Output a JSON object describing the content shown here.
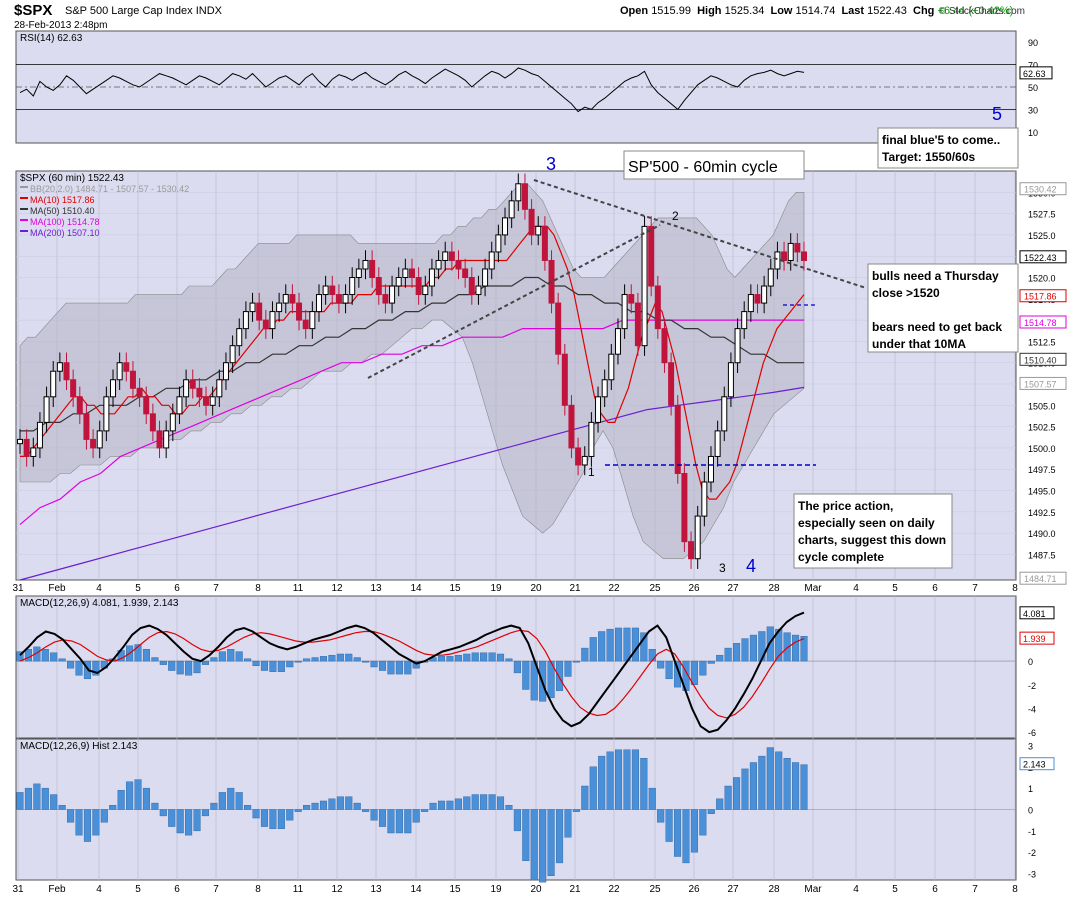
{
  "header": {
    "symbol": "$SPX",
    "name": "S&P 500 Large Cap Index",
    "exchange": "INDX",
    "datetime": "28-Feb-2013 2:48pm",
    "open_label": "Open",
    "open": "1515.99",
    "high_label": "High",
    "high": "1525.34",
    "low_label": "Low",
    "low": "1514.74",
    "last_label": "Last",
    "last": "1522.43",
    "chg_label": "Chg",
    "chg": "+6.44 (+0.42%)",
    "credit": "© StockCharts.com"
  },
  "colors": {
    "up": "#000000",
    "down": "#c0143c",
    "bb": "#999999",
    "ma10": "#e00000",
    "ma50": "#333333",
    "ma100": "#e000e0",
    "ma200": "#6a1fd0",
    "macd": "#000000",
    "signal": "#e00000",
    "hist": "#4a90d9",
    "panel": "#dcdcf0",
    "annotation": "#0000cc"
  },
  "chart_data": [
    {
      "type": "line",
      "title": "RSI(14) 62.63",
      "ylim": [
        0,
        100
      ],
      "yticks": [
        10,
        30,
        50,
        70,
        90
      ],
      "price_box": "62.63",
      "y": [
        45,
        48,
        42,
        55,
        50,
        47,
        52,
        60,
        56,
        50,
        44,
        48,
        52,
        56,
        60,
        58,
        55,
        52,
        50,
        54,
        58,
        62,
        60,
        58,
        55,
        52,
        56,
        60,
        58,
        55,
        52,
        57,
        62,
        60,
        57,
        62,
        56,
        50,
        54,
        58,
        60,
        56,
        52,
        58,
        62,
        55,
        50,
        57,
        61,
        59,
        56,
        60,
        63,
        58,
        55,
        52,
        56,
        61,
        64,
        60,
        57,
        53,
        58,
        62,
        66,
        63,
        60,
        56,
        50,
        55,
        60,
        64,
        62,
        58,
        62,
        67,
        65,
        62,
        60,
        55,
        50,
        45,
        40,
        35,
        28,
        32,
        30,
        36,
        40,
        45,
        50,
        55,
        58,
        60,
        64,
        52,
        45,
        40,
        35,
        30,
        38,
        45,
        52,
        56,
        60,
        58,
        55,
        52,
        50,
        56,
        60,
        62,
        63,
        65,
        62,
        60,
        62,
        64,
        63
      ]
    },
    {
      "type": "line",
      "title": "$SPX (60 min) 1522.43",
      "ylim": [
        1484.5,
        1532.5
      ],
      "yticks": [
        1487.5,
        1490.0,
        1492.5,
        1495.0,
        1497.5,
        1500.0,
        1502.5,
        1505.0,
        1507.5,
        1510.0,
        1512.5,
        1515.0,
        1517.5,
        1520.0,
        1522.5,
        1525.0,
        1527.5,
        1530.0
      ],
      "legend": [
        "BB(20,2.0) 1484.71 - 1507.57 - 1530.42",
        "MA(10) 1517.86",
        "MA(50) 1510.40",
        "MA(100) 1514.78",
        "MA(200) 1507.10"
      ],
      "price_boxes": [
        {
          "label": "1530.42",
          "value": 1530.42,
          "color": "#999999"
        },
        {
          "label": "1522.43",
          "value": 1522.43,
          "color": "#000000"
        },
        {
          "label": "1517.86",
          "value": 1517.86,
          "color": "#e00000"
        },
        {
          "label": "1514.78",
          "value": 1514.78,
          "color": "#e000e0"
        },
        {
          "label": "1510.40",
          "value": 1510.4,
          "color": "#333333"
        },
        {
          "label": "1507.57",
          "value": 1507.57,
          "color": "#999999"
        },
        {
          "label": "1484.71",
          "value": 1484.71,
          "color": "#999999"
        }
      ],
      "close": [
        1501,
        1499,
        1500,
        1503,
        1506,
        1509,
        1510,
        1508,
        1506,
        1504,
        1501,
        1500,
        1502,
        1506,
        1508,
        1510,
        1509,
        1507,
        1506,
        1504,
        1502,
        1500,
        1502,
        1504,
        1506,
        1508,
        1507,
        1506,
        1505,
        1506,
        1508,
        1510,
        1512,
        1514,
        1516,
        1517,
        1515,
        1514,
        1516,
        1517,
        1518,
        1517,
        1515,
        1514,
        1516,
        1518,
        1519,
        1518,
        1517,
        1518,
        1520,
        1521,
        1522,
        1520,
        1518,
        1517,
        1519,
        1520,
        1521,
        1520,
        1518,
        1519,
        1521,
        1522,
        1523,
        1522,
        1521,
        1520,
        1518,
        1519,
        1521,
        1523,
        1525,
        1527,
        1529,
        1531,
        1528,
        1525,
        1526,
        1522,
        1517,
        1511,
        1505,
        1500,
        1498,
        1499,
        1503,
        1506,
        1508,
        1511,
        1514,
        1518,
        1517,
        1512,
        1526,
        1519,
        1514,
        1510,
        1505,
        1497,
        1489,
        1487,
        1492,
        1496,
        1499,
        1502,
        1506,
        1510,
        1514,
        1516,
        1518,
        1517,
        1519,
        1521,
        1523,
        1522,
        1524,
        1523,
        1522
      ],
      "bb_upper": [
        1512,
        1513,
        1513,
        1514,
        1515,
        1516,
        1517,
        1517,
        1517,
        1517,
        1517,
        1517,
        1517,
        1517,
        1517,
        1518,
        1518,
        1518,
        1518,
        1518,
        1518,
        1518,
        1519,
        1519,
        1519,
        1519,
        1520,
        1521,
        1521,
        1522,
        1523,
        1524,
        1524,
        1524,
        1524,
        1524,
        1525,
        1525,
        1525,
        1525,
        1525,
        1525,
        1525,
        1525,
        1524,
        1524,
        1524,
        1524,
        1524,
        1524,
        1524,
        1524,
        1524,
        1524,
        1524,
        1525,
        1525,
        1526,
        1526,
        1527,
        1527,
        1528,
        1528,
        1529,
        1530,
        1531,
        1531,
        1530,
        1529,
        1527,
        1525,
        1523,
        1521,
        1520,
        1520,
        1520,
        1520,
        1521,
        1522,
        1523,
        1524,
        1525,
        1526,
        1527,
        1527,
        1527,
        1527,
        1527,
        1527,
        1526,
        1525,
        1523,
        1521,
        1520,
        1521,
        1522,
        1523,
        1524,
        1525,
        1527,
        1529,
        1530,
        1530
      ],
      "bb_lower": [
        1496,
        1496,
        1496,
        1496,
        1497,
        1497,
        1498,
        1498,
        1498,
        1499,
        1499,
        1499,
        1500,
        1500,
        1500,
        1501,
        1501,
        1502,
        1502,
        1503,
        1503,
        1504,
        1504,
        1505,
        1505,
        1506,
        1506,
        1507,
        1507,
        1508,
        1509,
        1509,
        1509,
        1510,
        1510,
        1511,
        1511,
        1512,
        1513,
        1514,
        1514,
        1515,
        1515,
        1514,
        1513,
        1510,
        1506,
        1502,
        1498,
        1495,
        1492,
        1491,
        1490,
        1491,
        1493,
        1495,
        1497,
        1500,
        1502,
        1500,
        1496,
        1492,
        1489,
        1488,
        1487,
        1487,
        1487,
        1488,
        1489,
        1491,
        1493,
        1496,
        1498,
        1500,
        1502,
        1504,
        1505,
        1506,
        1507
      ],
      "ma10": [
        1499,
        1499,
        1500,
        1501,
        1502,
        1503,
        1504,
        1505,
        1506,
        1506,
        1505,
        1505,
        1504,
        1504,
        1504,
        1505,
        1506,
        1506,
        1507,
        1506,
        1506,
        1505,
        1505,
        1504,
        1504,
        1505,
        1505,
        1506,
        1506,
        1507,
        1508,
        1509,
        1510,
        1511,
        1512,
        1513,
        1514,
        1514,
        1515,
        1515,
        1516,
        1516,
        1516,
        1516,
        1516,
        1516,
        1517,
        1517,
        1517,
        1517,
        1518,
        1518,
        1518,
        1519,
        1519,
        1519,
        1519,
        1519,
        1519,
        1519,
        1519,
        1520,
        1520,
        1521,
        1521,
        1522,
        1522,
        1522,
        1522,
        1522,
        1522,
        1522,
        1522,
        1523,
        1524,
        1525,
        1526,
        1526,
        1526,
        1525,
        1523,
        1521,
        1518,
        1514,
        1510,
        1506,
        1504,
        1503,
        1503,
        1505,
        1507,
        1510,
        1513,
        1515,
        1517,
        1516,
        1513,
        1510,
        1506,
        1502,
        1498,
        1495,
        1494,
        1494,
        1495,
        1496,
        1498,
        1501,
        1504,
        1507,
        1510,
        1512,
        1514,
        1515,
        1516,
        1517,
        1518
      ],
      "ma50": [
        1502,
        1502,
        1503,
        1503,
        1504,
        1504,
        1505,
        1505,
        1505,
        1506,
        1506,
        1507,
        1507,
        1508,
        1508,
        1509,
        1509,
        1510,
        1510,
        1511,
        1511,
        1512,
        1512,
        1513,
        1513,
        1514,
        1514,
        1515,
        1515,
        1516,
        1516,
        1517,
        1517,
        1518,
        1518,
        1519,
        1519,
        1519,
        1520,
        1520,
        1519,
        1519,
        1518,
        1518,
        1517,
        1517,
        1516,
        1516,
        1515,
        1515,
        1514,
        1514,
        1513,
        1513,
        1512,
        1511,
        1511,
        1510,
        1510,
        1510
      ],
      "ma100": [
        1491,
        1493,
        1494,
        1496,
        1497,
        1499,
        1500,
        1501,
        1502,
        1503,
        1504,
        1505,
        1506,
        1507,
        1508,
        1509,
        1510,
        1510,
        1511,
        1511,
        1512,
        1512,
        1513,
        1513,
        1513,
        1514,
        1514,
        1514,
        1514,
        1514,
        1515,
        1515,
        1515,
        1515,
        1515,
        1515,
        1515,
        1515,
        1515,
        1515
      ],
      "ma200": [
        1484.5,
        1485.5,
        1486.5,
        1487.5,
        1488.5,
        1489.5,
        1490.5,
        1491.5,
        1492.5,
        1493.5,
        1494.5,
        1495.5,
        1496.5,
        1497.5,
        1498.5,
        1499.5,
        1500.5,
        1501.5,
        1502.5,
        1503.5,
        1504.5,
        1505.0,
        1505.5,
        1506.0,
        1506.5,
        1507.1
      ]
    },
    {
      "type": "line",
      "title": "MACD(12,26,9) 4.081, 1.939, 2.143",
      "ylim": [
        -6.5,
        5.5
      ],
      "yticks": [
        -6,
        -4,
        -2,
        0,
        2,
        4
      ],
      "price_boxes": [
        {
          "label": "4.081",
          "color": "#000000"
        },
        {
          "label": "1.939",
          "color": "#e00000"
        }
      ],
      "macd": [
        0.5,
        1.2,
        2.0,
        2.5,
        2.3,
        1.8,
        1.0,
        0.2,
        -0.8,
        -1.0,
        -0.5,
        0.3,
        1.2,
        2.2,
        2.8,
        3.0,
        2.7,
        2.2,
        1.5,
        0.8,
        0.2,
        0.0,
        0.5,
        1.2,
        2.0,
        2.6,
        2.8,
        2.5,
        2.0,
        1.5,
        1.2,
        1.0,
        1.2,
        1.5,
        1.8,
        2.0,
        2.2,
        2.5,
        2.8,
        3.0,
        2.8,
        2.4,
        1.8,
        1.2,
        0.6,
        0.2,
        -0.2,
        0.0,
        0.4,
        0.8,
        1.0,
        1.2,
        1.5,
        1.8,
        2.2,
        2.5,
        2.8,
        3.0,
        2.8,
        1.5,
        -0.5,
        -2.5,
        -4.0,
        -5.0,
        -5.5,
        -5.2,
        -4.5,
        -3.5,
        -2.5,
        -1.5,
        -0.5,
        0.5,
        1.5,
        2.5,
        3.0,
        2.0,
        0.0,
        -2.0,
        -4.0,
        -5.5,
        -6.0,
        -5.8,
        -5.0,
        -4.0,
        -2.8,
        -1.5,
        0.0,
        1.5,
        2.5,
        3.3,
        3.8,
        4.1
      ],
      "signal": [
        0.0,
        0.3,
        0.7,
        1.2,
        1.6,
        1.8,
        1.7,
        1.4,
        0.9,
        0.4,
        0.1,
        0.0,
        0.3,
        0.8,
        1.4,
        2.0,
        2.4,
        2.5,
        2.3,
        1.9,
        1.4,
        1.0,
        0.8,
        0.9,
        1.2,
        1.6,
        2.0,
        2.3,
        2.4,
        2.3,
        2.1,
        1.9,
        1.7,
        1.6,
        1.6,
        1.7,
        1.8,
        2.0,
        2.2,
        2.4,
        2.5,
        2.5,
        2.3,
        2.0,
        1.7,
        1.3,
        0.9,
        0.6,
        0.5,
        0.5,
        0.6,
        0.8,
        1.0,
        1.2,
        1.5,
        1.8,
        2.1,
        2.4,
        2.6,
        2.5,
        1.9,
        0.8,
        -0.6,
        -1.9,
        -3.0,
        -3.9,
        -4.4,
        -4.6,
        -4.5,
        -4.0,
        -3.2,
        -2.3,
        -1.3,
        -0.3,
        0.6,
        1.0,
        0.6,
        -0.5,
        -1.8,
        -3.0,
        -4.0,
        -4.6,
        -4.8,
        -4.5,
        -3.9,
        -3.0,
        -1.9,
        -0.7,
        0.4,
        1.1,
        1.6,
        1.9
      ],
      "hist": [
        0.8,
        1.0,
        1.2,
        1.0,
        0.7,
        0.2,
        -0.6,
        -1.2,
        -1.5,
        -1.2,
        -0.6,
        0.2,
        0.9,
        1.3,
        1.4,
        1.0,
        0.3,
        -0.3,
        -0.8,
        -1.1,
        -1.2,
        -1.0,
        -0.3,
        0.3,
        0.8,
        1.0,
        0.8,
        0.2,
        -0.4,
        -0.8,
        -0.9,
        -0.9,
        -0.5,
        -0.1,
        0.2,
        0.3,
        0.4,
        0.5,
        0.6,
        0.6,
        0.3,
        -0.1,
        -0.5,
        -0.8,
        -1.1,
        -1.1,
        -1.1,
        -0.6,
        -0.1,
        0.3,
        0.4,
        0.4,
        0.5,
        0.6,
        0.7,
        0.7,
        0.7,
        0.6,
        0.2,
        -1.0,
        -2.4,
        -3.3,
        -3.4,
        -3.1,
        -2.5,
        -1.3,
        -0.1,
        1.1,
        2.0,
        2.5,
        2.7,
        2.8,
        2.8,
        2.8,
        2.4,
        1.0,
        -0.6,
        -1.5,
        -2.2,
        -2.5,
        -2.0,
        -1.2,
        -0.2,
        0.5,
        1.1,
        1.5,
        1.9,
        2.2,
        2.5,
        2.9,
        2.7,
        2.4,
        2.2,
        2.1
      ]
    },
    {
      "type": "bar",
      "title": "MACD(12,26,9) Hist 2.143",
      "ylim": [
        -3.3,
        3.3
      ],
      "yticks": [
        -3,
        -2,
        -1,
        0,
        1,
        2,
        3
      ],
      "price_box": "2.143",
      "values": [
        0.8,
        1.0,
        1.2,
        1.0,
        0.7,
        0.2,
        -0.6,
        -1.2,
        -1.5,
        -1.2,
        -0.6,
        0.2,
        0.9,
        1.3,
        1.4,
        1.0,
        0.3,
        -0.3,
        -0.8,
        -1.1,
        -1.2,
        -1.0,
        -0.3,
        0.3,
        0.8,
        1.0,
        0.8,
        0.2,
        -0.4,
        -0.8,
        -0.9,
        -0.9,
        -0.5,
        -0.1,
        0.2,
        0.3,
        0.4,
        0.5,
        0.6,
        0.6,
        0.3,
        -0.1,
        -0.5,
        -0.8,
        -1.1,
        -1.1,
        -1.1,
        -0.6,
        -0.1,
        0.3,
        0.4,
        0.4,
        0.5,
        0.6,
        0.7,
        0.7,
        0.7,
        0.6,
        0.2,
        -1.0,
        -2.4,
        -3.3,
        -3.4,
        -3.1,
        -2.5,
        -1.3,
        -0.1,
        1.1,
        2.0,
        2.5,
        2.7,
        2.8,
        2.8,
        2.8,
        2.4,
        1.0,
        -0.6,
        -1.5,
        -2.2,
        -2.5,
        -2.0,
        -1.2,
        -0.2,
        0.5,
        1.1,
        1.5,
        1.9,
        2.2,
        2.5,
        2.9,
        2.7,
        2.4,
        2.2,
        2.1
      ]
    }
  ],
  "x_axis": {
    "labels": [
      "31",
      "Feb",
      "4",
      "5",
      "6",
      "7",
      "8",
      "11",
      "12",
      "13",
      "14",
      "15",
      "19",
      "20",
      "21",
      "22",
      "25",
      "26",
      "27",
      "28",
      "Mar",
      "4",
      "5",
      "6",
      "7",
      "8"
    ]
  },
  "annotations": {
    "title_box": "SP'500 - 60min cycle",
    "wave_3": "3",
    "wave_4": "4",
    "wave_5": "5",
    "mark_1": "1",
    "mark_2": "2",
    "mark_3": "3",
    "box_target": [
      "final blue'5 to come..",
      "Target: 1550/60s"
    ],
    "box_bulls": [
      "bulls need a Thursday",
      "close >1520",
      "",
      "bears need to get back",
      "under that 10MA"
    ],
    "box_price": [
      "The price action,",
      "especially seen on daily",
      "charts, suggest this down",
      "cycle complete"
    ]
  }
}
